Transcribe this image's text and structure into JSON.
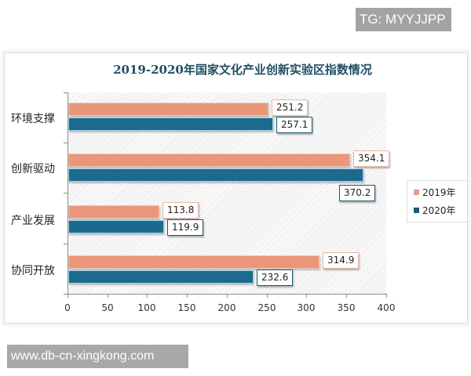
{
  "watermarks": {
    "top": "TG: MYYJJPP",
    "bottom": "www.db-cn-xingkong.com"
  },
  "colors": {
    "series_2019": "#e9967a",
    "series_2020": "#1d6a8f",
    "title": "#1f4e63"
  },
  "chart_data": {
    "type": "bar",
    "orientation": "horizontal",
    "title": "2019-2020年国家文化产业创新实验区指数情况",
    "categories": [
      "环境支撑",
      "创新驱动",
      "产业发展",
      "协同开放"
    ],
    "series": [
      {
        "name": "2019年",
        "values": [
          251.2,
          354.1,
          113.8,
          314.9
        ]
      },
      {
        "name": "2020年",
        "values": [
          257.1,
          370.2,
          119.9,
          232.6
        ]
      }
    ],
    "data_labels": {
      "2019年": [
        "251.2",
        "354.1",
        "113.8",
        "314.9"
      ],
      "2020年": [
        "257.1",
        "370.2",
        "119.9",
        "232.6"
      ]
    },
    "xlabel": "",
    "ylabel": "",
    "xlim": [
      0,
      400
    ],
    "x_ticks": [
      "0",
      "50",
      "100",
      "150",
      "200",
      "250",
      "300",
      "350",
      "400"
    ],
    "grid": false,
    "plot_background": "diagonal hatch",
    "legend": {
      "position": "right",
      "entries": [
        "2019年",
        "2020年"
      ]
    }
  }
}
